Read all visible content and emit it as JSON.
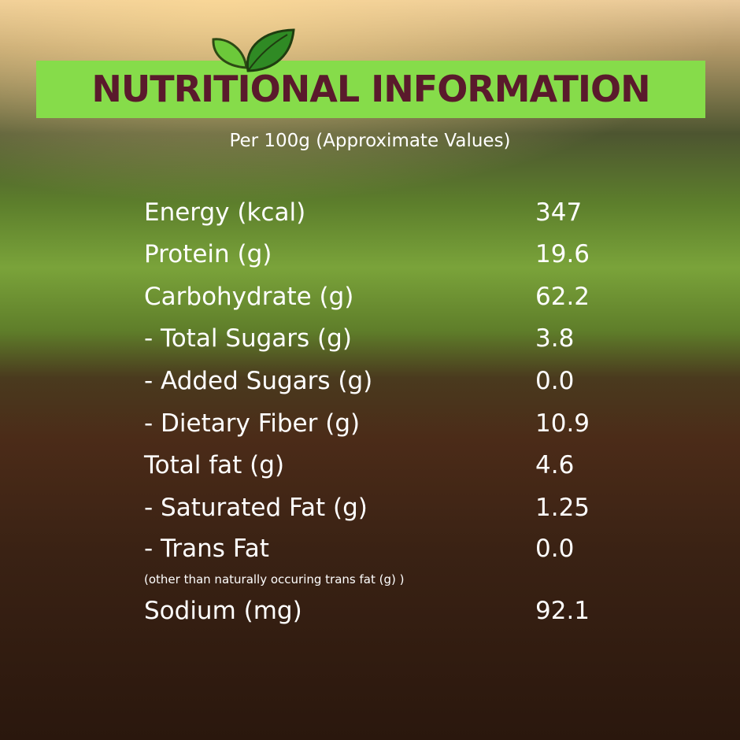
{
  "header": {
    "title": "NUTRITIONAL INFORMATION",
    "subtitle": "Per 100g (Approximate Values)"
  },
  "rows": [
    {
      "label": "Energy (kcal)",
      "value": "347"
    },
    {
      "label": "Protein (g)",
      "value": "19.6"
    },
    {
      "label": "Carbohydrate (g)",
      "value": "62.2"
    },
    {
      "label": "- Total Sugars (g)",
      "value": "3.8"
    },
    {
      "label": "- Added Sugars (g)",
      "value": "0.0"
    },
    {
      "label": "- Dietary Fiber (g)",
      "value": "10.9"
    },
    {
      "label": "Total fat (g)",
      "value": "4.6"
    },
    {
      "label": "- Saturated Fat (g)",
      "value": "1.25"
    },
    {
      "label": "- Trans Fat",
      "value": "0.0",
      "note": "(other than naturally occuring trans fat (g) )"
    },
    {
      "label": "Sodium (mg)",
      "value": "92.1"
    }
  ]
}
